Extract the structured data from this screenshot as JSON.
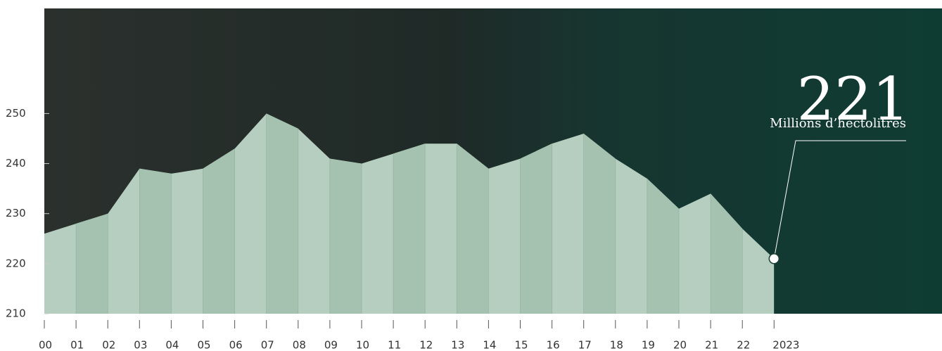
{
  "chart_data": {
    "type": "area",
    "unit_label": "Millions d’hectolitres",
    "categories": [
      "00",
      "01",
      "02",
      "03",
      "04",
      "05",
      "06",
      "07",
      "08",
      "09",
      "10",
      "11",
      "12",
      "13",
      "14",
      "15",
      "16",
      "17",
      "18",
      "19",
      "20",
      "21",
      "22",
      "2023"
    ],
    "values": [
      226,
      228,
      230,
      239,
      238,
      239,
      243,
      250,
      247,
      241,
      240,
      242,
      244,
      244,
      239,
      241,
      244,
      246,
      241,
      237,
      231,
      234,
      227,
      221
    ],
    "color": "#b6cebf",
    "band_color": "#a5c2b0",
    "ylim": [
      210,
      271
    ],
    "yticks": [
      210,
      220,
      230,
      240,
      250
    ]
  }
}
